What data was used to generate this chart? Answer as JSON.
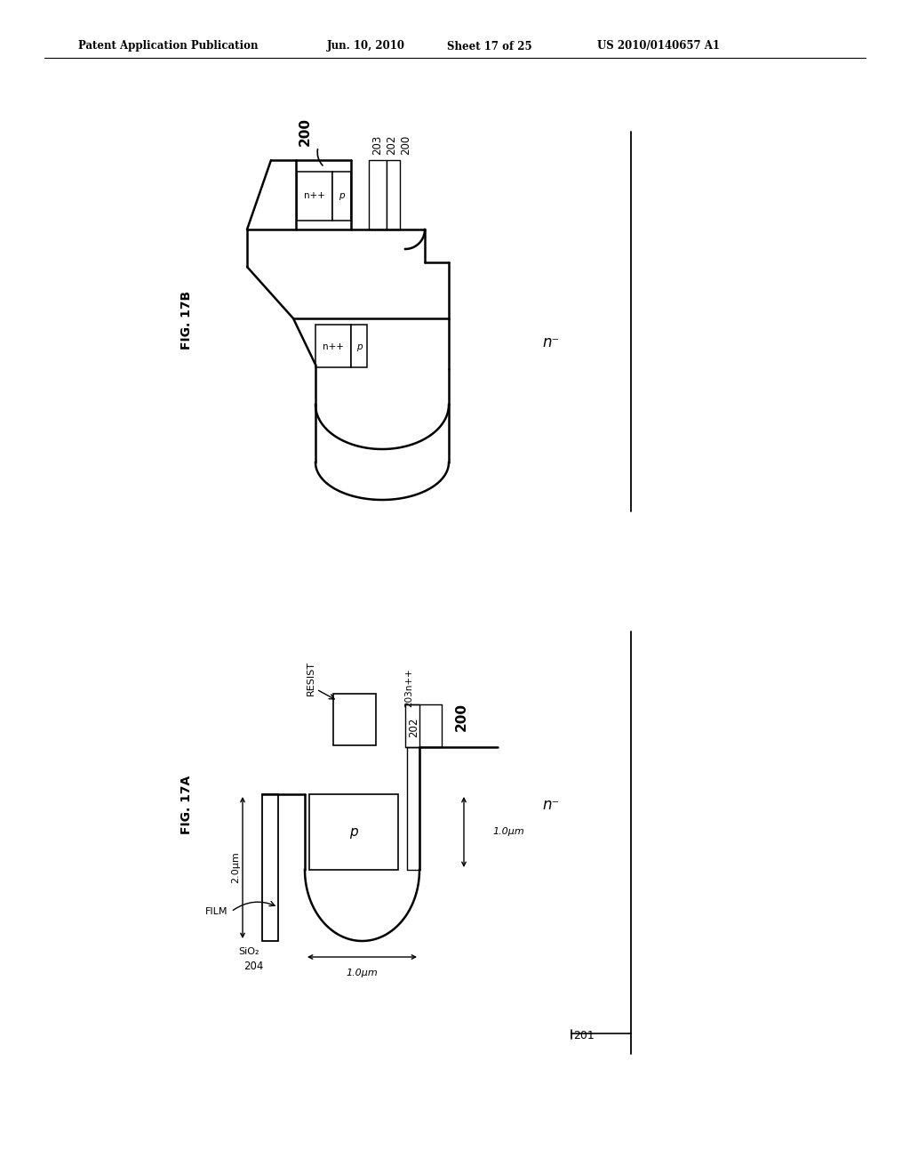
{
  "background_color": "#ffffff",
  "header_text": "Patent Application Publication",
  "header_date": "Jun. 10, 2010",
  "header_sheet": "Sheet 17 of 25",
  "header_patent": "US 2010/0140657 A1",
  "fig17b_label": "FIG. 17B",
  "fig17a_label": "FIG. 17A",
  "n_minus": "n⁻",
  "label_200": "200",
  "label_201": "201",
  "label_202": "202",
  "label_203": "203",
  "label_203n": "203n++",
  "label_204": "204",
  "label_p": "p",
  "label_npp": "n++",
  "label_sio2": "SiO₂",
  "label_film": "FILM",
  "label_resist": "RESIST",
  "label_2um": "2.0μm",
  "label_1um_right": "1.0μm",
  "label_1um_bot": "1.0μm"
}
